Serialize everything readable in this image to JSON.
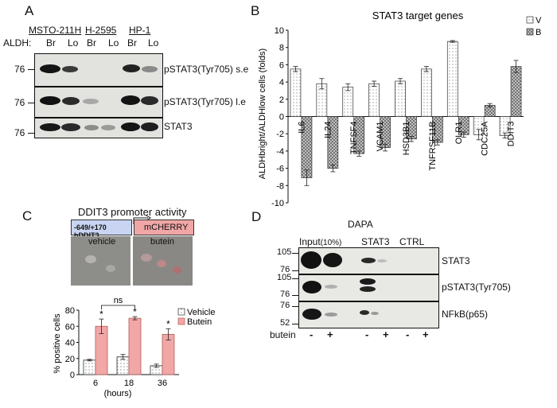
{
  "panels": {
    "A": {
      "letter": "A",
      "cell_lines": [
        "MSTO-211H",
        "H-2595",
        "HP-1"
      ],
      "aldh_label": "ALDH:",
      "lanes": [
        "Br",
        "Lo",
        "Br",
        "Lo",
        "Br",
        "Lo"
      ],
      "blots": [
        {
          "label": "pSTAT3(Tyr705) s.e",
          "marker": "76"
        },
        {
          "label": "pSTAT3(Tyr705) l.e",
          "marker": "76"
        },
        {
          "label": "STAT3",
          "marker": "76"
        }
      ]
    },
    "B": {
      "letter": "B"
    },
    "C": {
      "letter": "C",
      "promoter_title": "DDIT3 promoter activity",
      "promoter_box": "-649/+170 hDDIT3",
      "reporter_box": "mCHERRY",
      "img_vehicle": "vehicle",
      "img_butein": "butein"
    },
    "D": {
      "letter": "D",
      "title": "DAPA",
      "col_input": "Input",
      "col_input_pct": "(10%)",
      "col_stat3": "STAT3",
      "col_ctrl": "CTRL",
      "blots": [
        {
          "label": "STAT3",
          "markers": [
            "105",
            "76"
          ]
        },
        {
          "label": "pSTAT3(Tyr705)",
          "markers": [
            "105",
            "76"
          ]
        },
        {
          "label": "NFkB(p65)",
          "markers": [
            "76",
            "52"
          ]
        }
      ],
      "butein_label": "butein",
      "signs": [
        "-",
        "+",
        "-",
        "+",
        "-",
        "+"
      ]
    }
  },
  "colors": {
    "vehicle": "#ffffff",
    "butein": "#f2a7a7",
    "butein_edge": "#b35a5a",
    "promoter_box": "#c9d4f2",
    "reporter_box": "#f0a6a6"
  },
  "chart_data": [
    {
      "type": "bar",
      "title": "STAT3 target genes",
      "ylabel": "ALDHbright/ALDHlow cells (folds)",
      "ylim": [
        -10,
        10
      ],
      "yticks": [
        -10,
        -8,
        -6,
        -4,
        -2,
        0,
        2,
        4,
        6,
        8,
        10
      ],
      "categories": [
        "IL6",
        "IL24",
        "TNFSF4",
        "VCAM1",
        "HSD3B1",
        "TNFRSF11B",
        "OLR1",
        "CDC25A",
        "DDIT3"
      ],
      "series": [
        {
          "name": "V",
          "values": [
            5.5,
            3.8,
            3.4,
            3.8,
            4.1,
            5.5,
            8.7,
            -2.1,
            -2.2
          ],
          "errors": [
            0.3,
            0.6,
            0.4,
            0.3,
            0.3,
            0.3,
            0.1,
            0.6,
            0.3
          ]
        },
        {
          "name": "B",
          "values": [
            -7.1,
            -6.0,
            -4.3,
            -3.6,
            -2.6,
            -3.0,
            -2.1,
            1.3,
            5.8
          ],
          "errors": [
            0.9,
            0.4,
            0.3,
            0.4,
            0.3,
            0.3,
            0.3,
            0.2,
            0.7
          ]
        }
      ],
      "legend": "top-right"
    },
    {
      "type": "bar",
      "ylabel": "% positive cells",
      "xlabel": "(hours)",
      "ylim": [
        0,
        80
      ],
      "yticks": [
        0,
        20,
        40,
        60,
        80
      ],
      "categories": [
        "6",
        "18",
        "36"
      ],
      "series": [
        {
          "name": "Vehicle",
          "values": [
            18,
            22,
            11
          ],
          "errors": [
            1,
            3,
            2
          ]
        },
        {
          "name": "Butein",
          "values": [
            60,
            70,
            50
          ],
          "errors": [
            9,
            2,
            7
          ]
        }
      ],
      "significance": [
        "*",
        "*",
        "*",
        "*"
      ],
      "bracket_label": "ns",
      "legend": "top-right"
    }
  ]
}
